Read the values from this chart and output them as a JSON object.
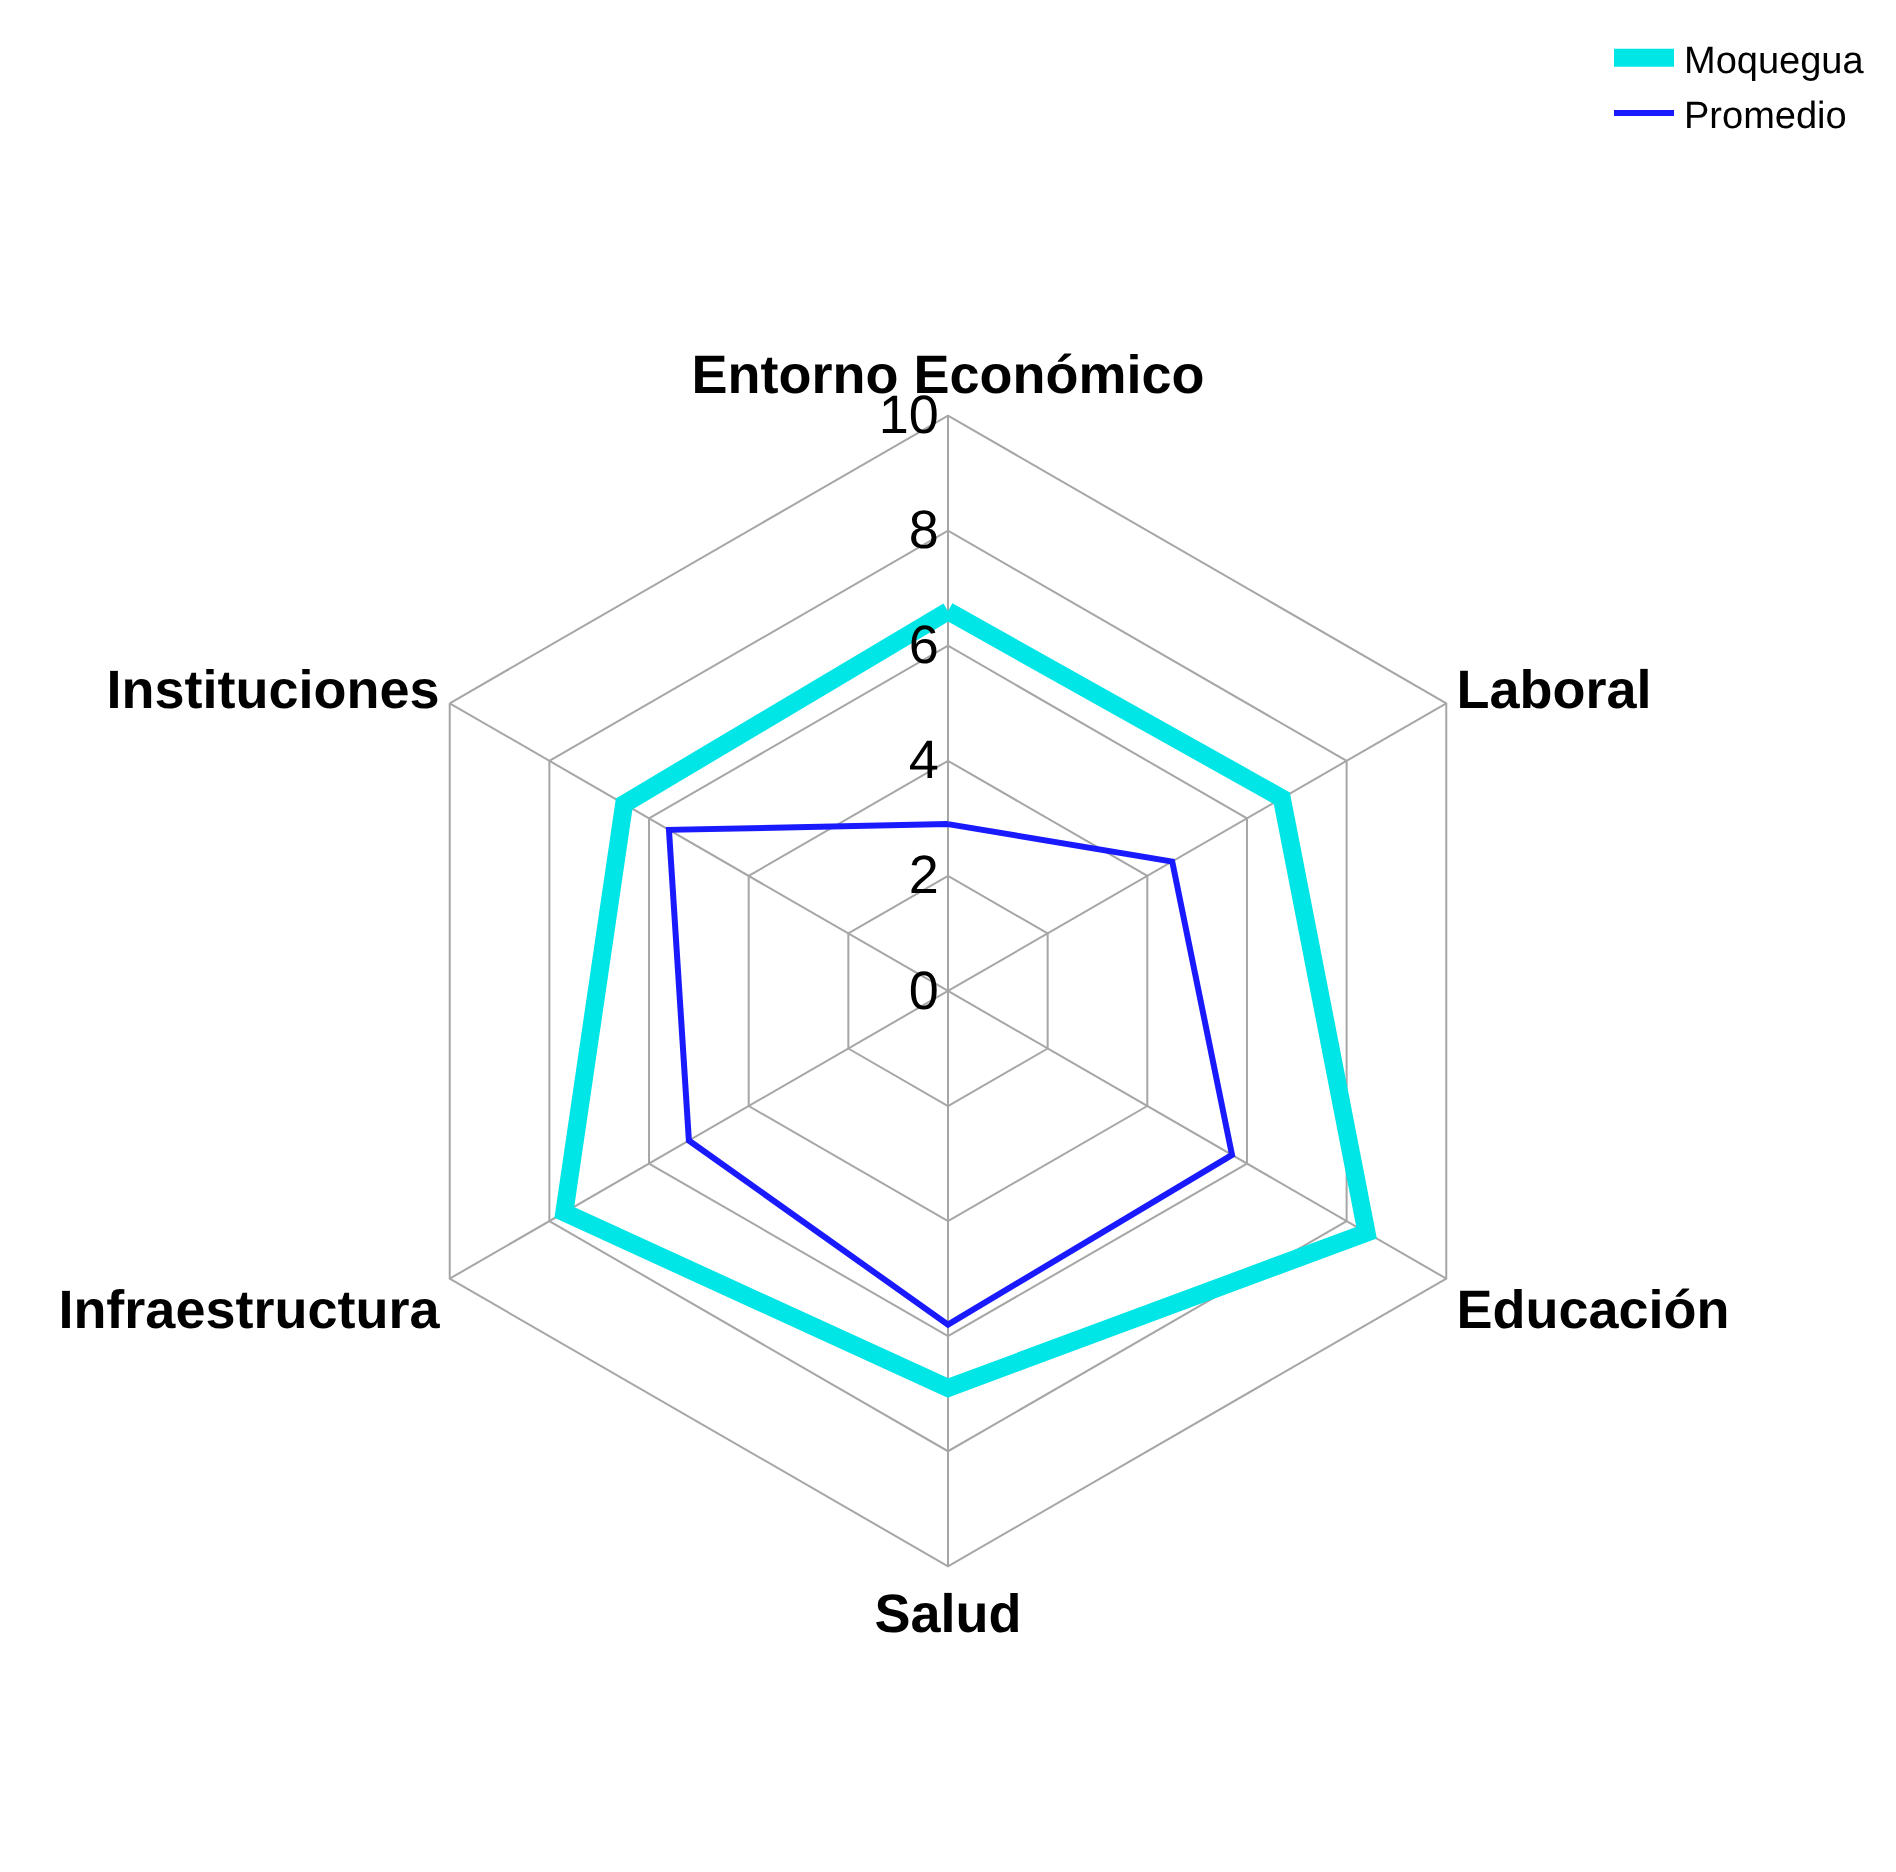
{
  "chart_data": {
    "type": "radar",
    "categories": [
      "Entorno Económico",
      "Laboral",
      "Educación",
      "Salud",
      "Infraestructura",
      "Instituciones"
    ],
    "series": [
      {
        "name": "Moquegua",
        "color": "#00e5e5",
        "values": [
          6.6,
          6.7,
          8.4,
          6.9,
          7.7,
          6.5
        ]
      },
      {
        "name": "Promedio",
        "color": "#1a1aff",
        "values": [
          2.9,
          4.5,
          5.7,
          5.8,
          5.2,
          5.6
        ]
      }
    ],
    "ylim": [
      0,
      10
    ],
    "yticks": [
      0,
      2,
      4,
      6,
      8,
      10
    ],
    "grid": true,
    "legend": "top right",
    "marker": "none",
    "line_style": "solid"
  }
}
